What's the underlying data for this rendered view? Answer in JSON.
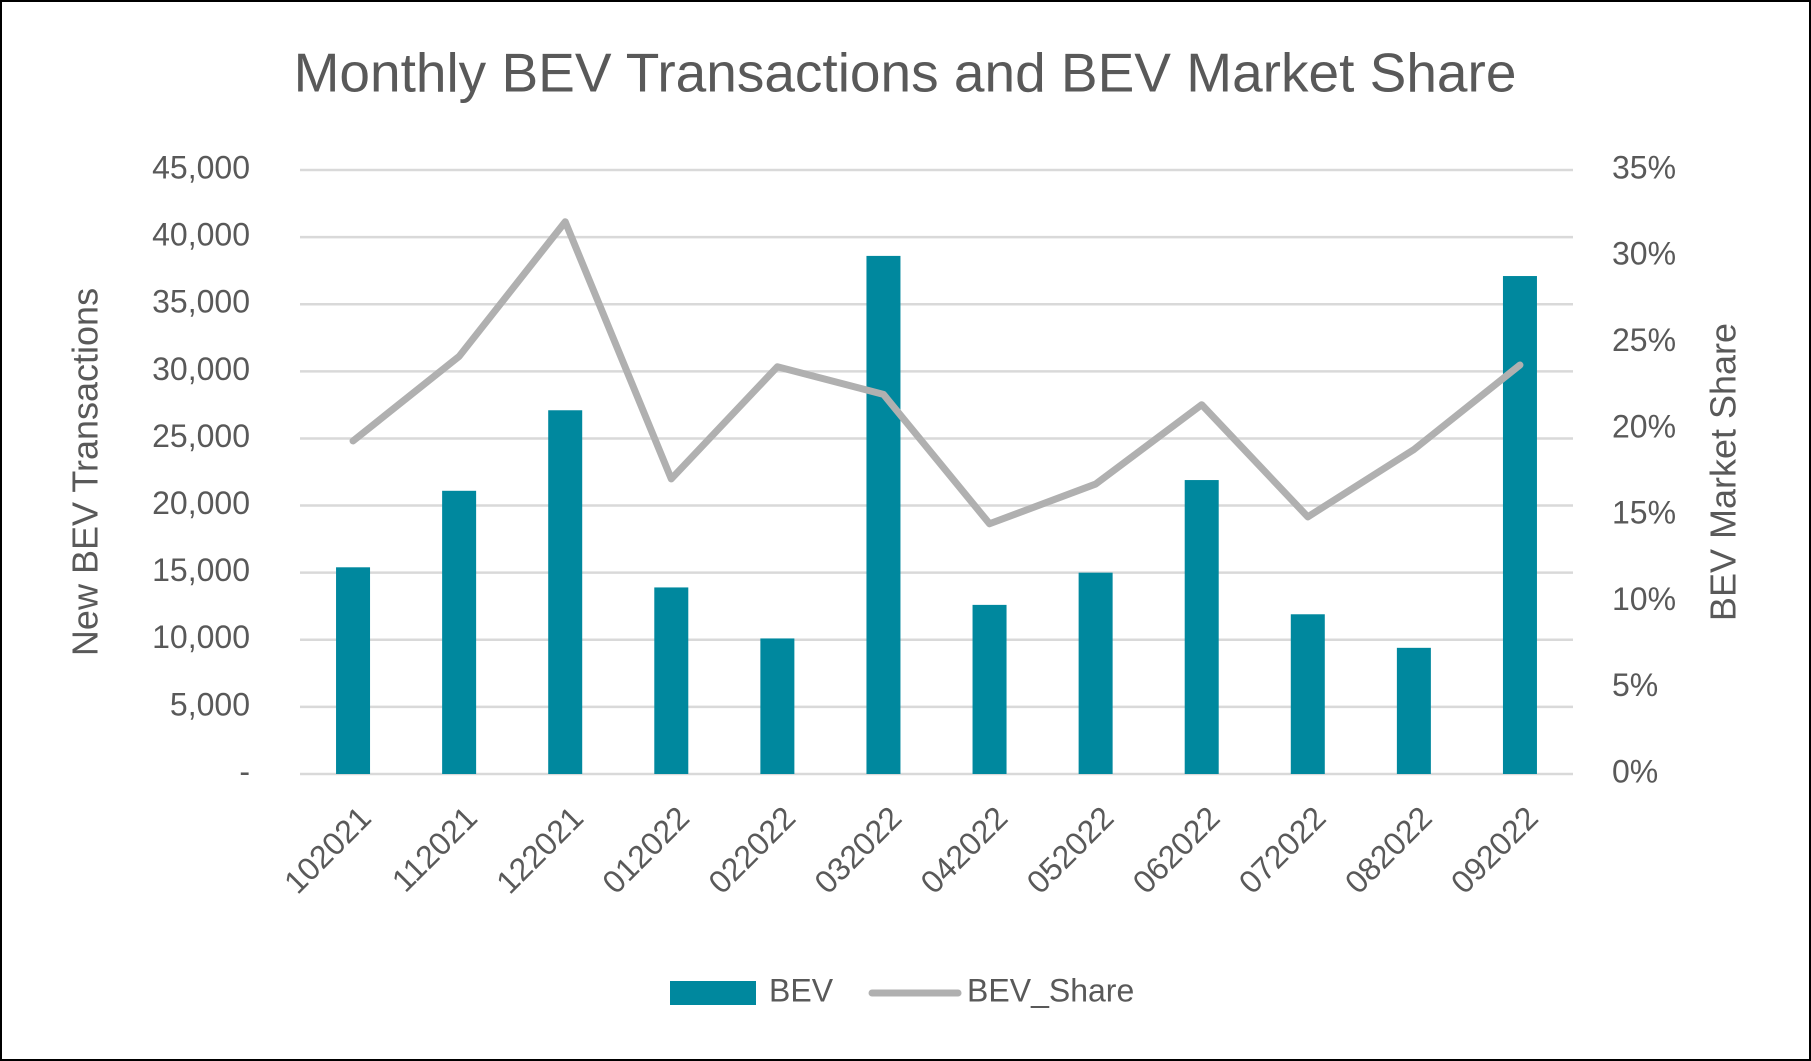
{
  "chart_data": {
    "type": "bar_line",
    "title": "Monthly BEV Transactions and BEV Market Share",
    "y_label": "New BEV Transactions",
    "y2_label": "BEV Market Share",
    "categories": [
      "102021",
      "112021",
      "122021",
      "012022",
      "022022",
      "032022",
      "042022",
      "052022",
      "062022",
      "072022",
      "082022",
      "092022"
    ],
    "series": [
      {
        "name": "BEV",
        "type": "bar",
        "color": "#00889e",
        "values": [
          15400,
          21100,
          27100,
          13900,
          10100,
          38600,
          12600,
          15000,
          21900,
          11900,
          9400,
          37100
        ]
      },
      {
        "name": "BEV_Share",
        "type": "line",
        "axis": "y2",
        "color": "#b0b0b0",
        "values": [
          19.3,
          24.2,
          32.0,
          17.1,
          23.6,
          22.0,
          14.5,
          16.8,
          21.4,
          14.9,
          18.8,
          23.7
        ]
      }
    ],
    "ylim": [
      0,
      45000
    ],
    "yticks": [
      {
        "value": 0,
        "label": "-"
      },
      {
        "value": 5000,
        "label": "5,000"
      },
      {
        "value": 10000,
        "label": "10,000"
      },
      {
        "value": 15000,
        "label": "15,000"
      },
      {
        "value": 20000,
        "label": "20,000"
      },
      {
        "value": 25000,
        "label": "25,000"
      },
      {
        "value": 30000,
        "label": "30,000"
      },
      {
        "value": 35000,
        "label": "35,000"
      },
      {
        "value": 40000,
        "label": "40,000"
      },
      {
        "value": 45000,
        "label": "45,000"
      }
    ],
    "y2lim": [
      0,
      35
    ],
    "y2ticks": [
      {
        "value": 0,
        "label": "0%"
      },
      {
        "value": 5,
        "label": "5%"
      },
      {
        "value": 10,
        "label": "10%"
      },
      {
        "value": 15,
        "label": "15%"
      },
      {
        "value": 20,
        "label": "20%"
      },
      {
        "value": 25,
        "label": "25%"
      },
      {
        "value": 30,
        "label": "30%"
      },
      {
        "value": 35,
        "label": "35%"
      }
    ],
    "grid": true,
    "legend": "bottom"
  }
}
